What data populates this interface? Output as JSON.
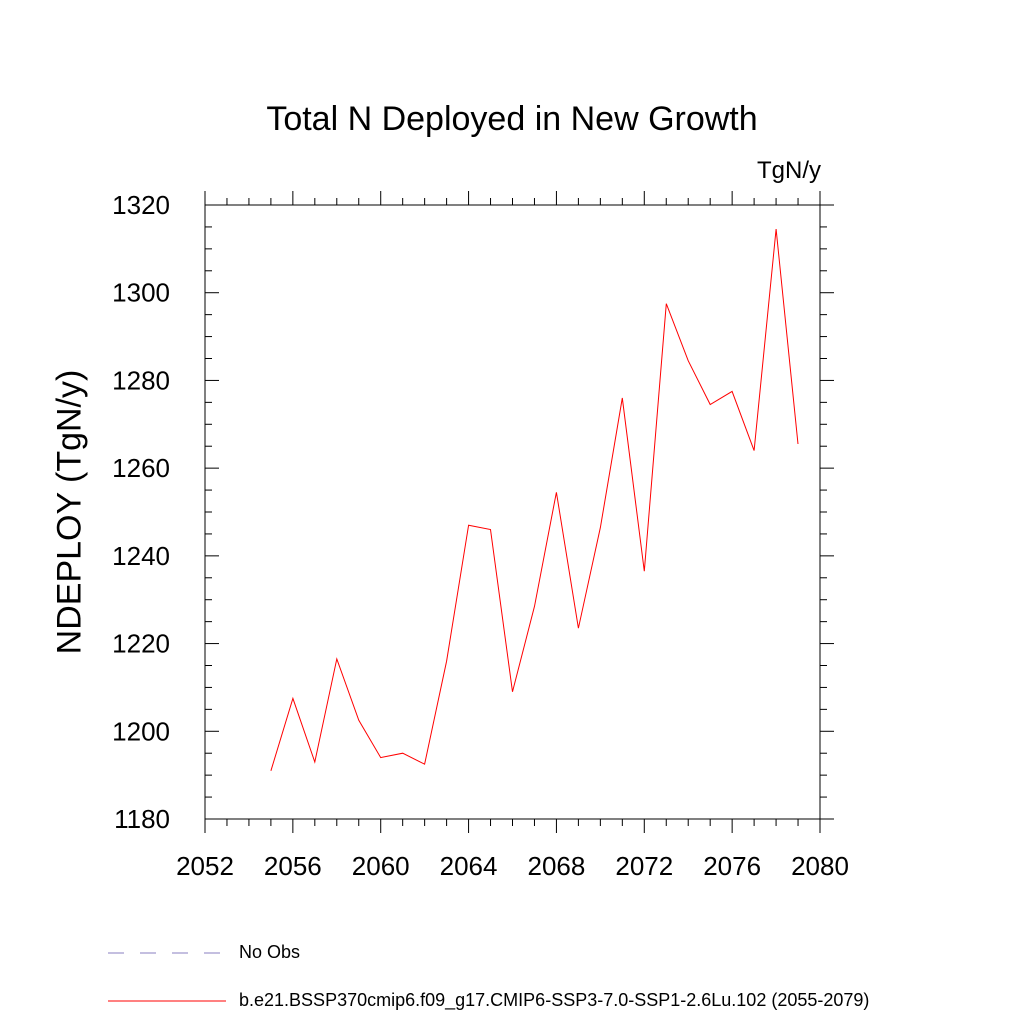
{
  "chart_data": {
    "type": "line",
    "title": "Total N Deployed in New Growth",
    "units_label": "TgN/y",
    "ylabel": "NDEPLOY  (TgN/y)",
    "xlabel": "",
    "xlim": [
      2052,
      2080
    ],
    "ylim": [
      1180,
      1320
    ],
    "xticks": [
      2052,
      2056,
      2060,
      2064,
      2068,
      2072,
      2076,
      2080
    ],
    "yticks": [
      1180,
      1200,
      1220,
      1240,
      1260,
      1280,
      1300,
      1320
    ],
    "series": [
      {
        "name": "b.e21.BSSP370cmip6.f09_g17.CMIP6-SSP3-7.0-SSP1-2.6Lu.102 (2055-2079)",
        "color": "#ff0000",
        "x": [
          2055,
          2056,
          2057,
          2058,
          2059,
          2060,
          2061,
          2062,
          2063,
          2064,
          2065,
          2066,
          2067,
          2068,
          2069,
          2070,
          2071,
          2072,
          2073,
          2074,
          2075,
          2076,
          2077,
          2078,
          2079
        ],
        "y": [
          1191,
          1207.5,
          1193,
          1216.5,
          1202.5,
          1194,
          1195,
          1192.5,
          1216,
          1247,
          1246,
          1209,
          1228.5,
          1254.5,
          1223.5,
          1246.5,
          1276,
          1236.5,
          1297.5,
          1284.5,
          1274.5,
          1277.5,
          1264,
          1314.5,
          1265.5
        ]
      }
    ],
    "legend": [
      {
        "label": "No Obs",
        "style": "dashed",
        "color": "#8a7fc0"
      },
      {
        "label": "b.e21.BSSP370cmip6.f09_g17.CMIP6-SSP3-7.0-SSP1-2.6Lu.102 (2055-2079)",
        "style": "solid",
        "color": "#ff0000"
      }
    ],
    "legend_position": "bottom",
    "grid": false
  }
}
